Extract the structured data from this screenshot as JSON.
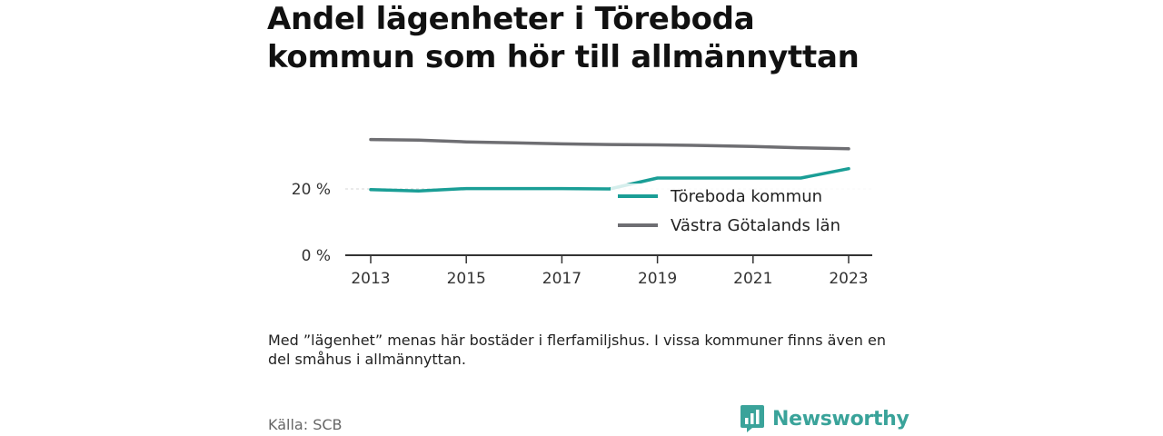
{
  "title": "Andel lägenheter i Töreboda kommun som hör till allmännyttan",
  "note": "Med ”lägenhet” menas här bostäder i flerfamiljshus. I vissa kommuner finns även en del småhus i allmännyttan.",
  "source": "Källa: SCB",
  "brand": {
    "name": "Newsworthy",
    "icon": "newsworthy-logo-icon"
  },
  "colors": {
    "teal": "#1a9e96",
    "gray": "#6e6e72",
    "grid": "#dddddd",
    "axis": "#333333"
  },
  "chart_data": {
    "type": "line",
    "x": [
      2013,
      2014,
      2015,
      2016,
      2017,
      2018,
      2019,
      2020,
      2021,
      2022,
      2023
    ],
    "xticks": [
      "2013",
      "2015",
      "2017",
      "2019",
      "2021",
      "2023"
    ],
    "yticks": [
      0,
      20
    ],
    "ytick_labels": [
      "0 %",
      "20 %"
    ],
    "ylim": [
      0,
      40
    ],
    "series": [
      {
        "name": "Töreboda kommun",
        "color": "#1a9e96",
        "values": [
          19.8,
          19.4,
          20.1,
          20.1,
          20.1,
          20.0,
          23.3,
          23.3,
          23.3,
          23.3,
          26.1
        ]
      },
      {
        "name": "Västra Götalands län",
        "color": "#6e6e72",
        "values": [
          34.9,
          34.7,
          34.2,
          33.9,
          33.6,
          33.4,
          33.3,
          33.1,
          32.8,
          32.4,
          32.1
        ]
      }
    ],
    "legend_position": "bottom-right",
    "grid": true
  }
}
